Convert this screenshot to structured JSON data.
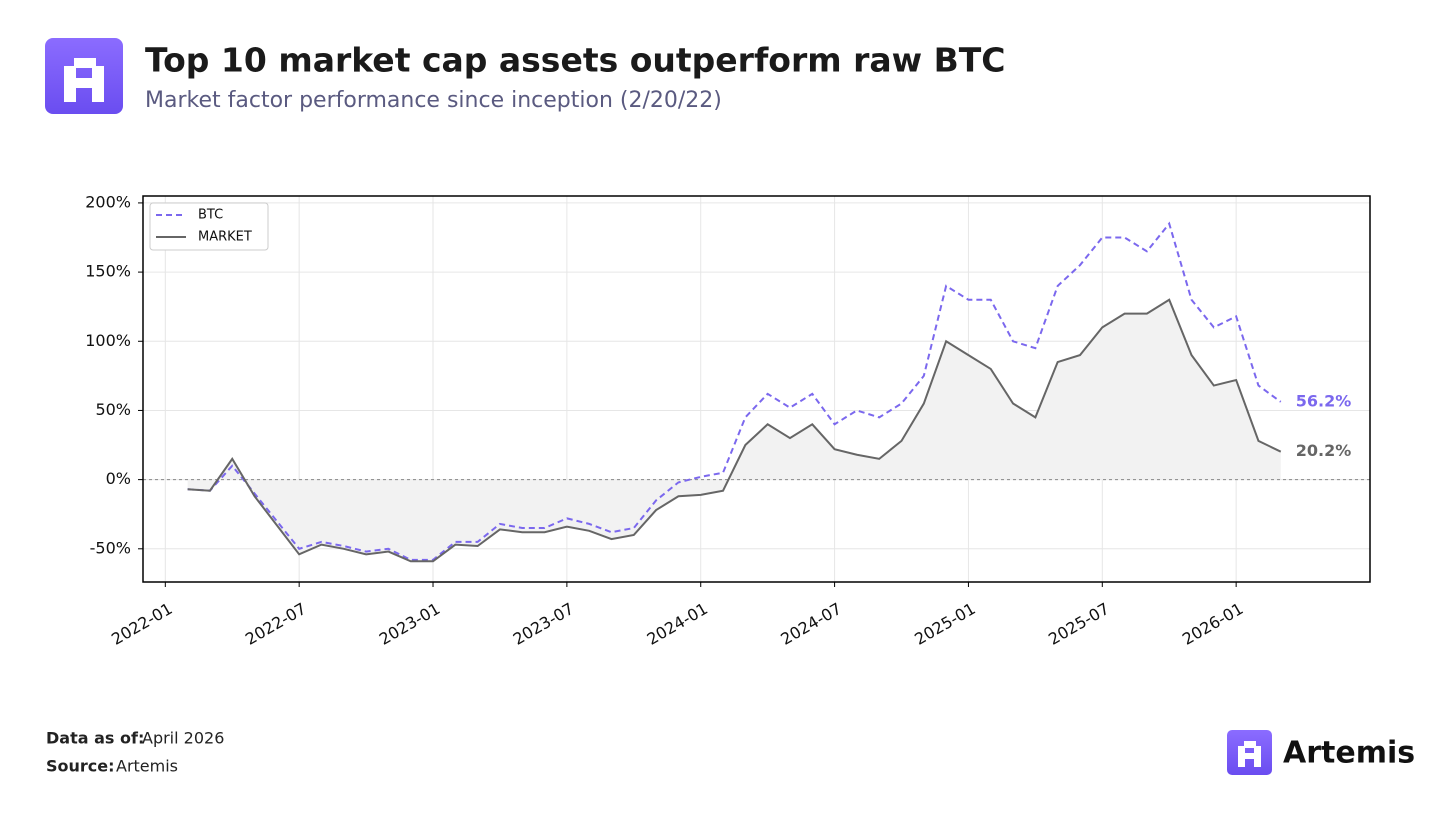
{
  "chart_data": {
    "type": "line",
    "title": "Top 10 market cap assets outperform raw BTC",
    "subtitle": "Market factor performance since inception (2/20/22)",
    "footer": {
      "data_label": "Data as of:",
      "data_value": "April 2026",
      "source_label": "Source:",
      "source_value": "Artemis"
    },
    "brand": "Artemis",
    "x": [
      "2022-02",
      "2022-03",
      "2022-04",
      "2022-05",
      "2022-06",
      "2022-07",
      "2022-08",
      "2022-09",
      "2022-10",
      "2022-11",
      "2022-12",
      "2023-01",
      "2023-02",
      "2023-03",
      "2023-04",
      "2023-05",
      "2023-06",
      "2023-07",
      "2023-08",
      "2023-09",
      "2023-10",
      "2023-11",
      "2023-12",
      "2024-01",
      "2024-02",
      "2024-03",
      "2024-04",
      "2024-05",
      "2024-06",
      "2024-07",
      "2024-08",
      "2024-09",
      "2024-10",
      "2024-11",
      "2024-12",
      "2025-01",
      "2025-02",
      "2025-03",
      "2025-04",
      "2025-05",
      "2025-06",
      "2025-07",
      "2025-08",
      "2025-09",
      "2025-10",
      "2025-11",
      "2025-12",
      "2026-01",
      "2026-02",
      "2026-03"
    ],
    "series": [
      {
        "name": "BTC",
        "color": "#7b68ee",
        "dash": true,
        "values": [
          -7,
          -8,
          10,
          -10,
          -30,
          -50,
          -45,
          -48,
          -52,
          -50,
          -58,
          -58,
          -45,
          -45,
          -32,
          -35,
          -35,
          -28,
          -32,
          -38,
          -35,
          -15,
          -2,
          2,
          5,
          45,
          62,
          52,
          62,
          40,
          50,
          45,
          55,
          75,
          140,
          130,
          130,
          100,
          95,
          140,
          155,
          175,
          175,
          165,
          185,
          130,
          110,
          118,
          68,
          56.2
        ],
        "value_labels": [
          null,
          null,
          null,
          null,
          null,
          null,
          null,
          null,
          null,
          null,
          null,
          null,
          null,
          null,
          null,
          null,
          null,
          null,
          null,
          null,
          null,
          null,
          null,
          null,
          null,
          null,
          null,
          null,
          null,
          null,
          null,
          null,
          null,
          null,
          null,
          null,
          null,
          null,
          null,
          null,
          null,
          null,
          null,
          null,
          null,
          null,
          null,
          null,
          null,
          "56.2%"
        ]
      },
      {
        "name": "MARKET",
        "color": "#666666",
        "dash": false,
        "fill": "#f2f2f2",
        "values": [
          -7,
          -8,
          15,
          -12,
          -33,
          -54,
          -47,
          -50,
          -54,
          -52,
          -59,
          -59,
          -47,
          -48,
          -36,
          -38,
          -38,
          -34,
          -37,
          -43,
          -40,
          -22,
          -12,
          -11,
          -8,
          25,
          40,
          30,
          40,
          22,
          18,
          15,
          28,
          55,
          100,
          90,
          80,
          55,
          45,
          85,
          90,
          110,
          120,
          120,
          130,
          90,
          68,
          72,
          28,
          20.2
        ],
        "value_labels": [
          null,
          null,
          null,
          null,
          null,
          null,
          null,
          null,
          null,
          null,
          null,
          null,
          null,
          null,
          null,
          null,
          null,
          null,
          null,
          null,
          null,
          null,
          null,
          null,
          null,
          null,
          null,
          null,
          null,
          null,
          null,
          null,
          null,
          null,
          null,
          null,
          null,
          null,
          null,
          null,
          null,
          null,
          null,
          null,
          null,
          null,
          null,
          null,
          null,
          "20.2%"
        ]
      }
    ],
    "xlim": [
      "2021-12",
      "2026-07"
    ],
    "xticks": [
      "2022-01",
      "2022-07",
      "2023-01",
      "2023-07",
      "2024-01",
      "2024-07",
      "2025-01",
      "2025-07",
      "2026-01"
    ],
    "ylim": [
      -74,
      205
    ],
    "yticks": [
      {
        "value": -50,
        "label": "-50%"
      },
      {
        "value": 0,
        "label": "0%"
      },
      {
        "value": 50,
        "label": "50%"
      },
      {
        "value": 100,
        "label": "100%"
      },
      {
        "value": 150,
        "label": "150%"
      },
      {
        "value": 200,
        "label": "200%"
      }
    ],
    "grid": true,
    "legend": "upper left"
  }
}
